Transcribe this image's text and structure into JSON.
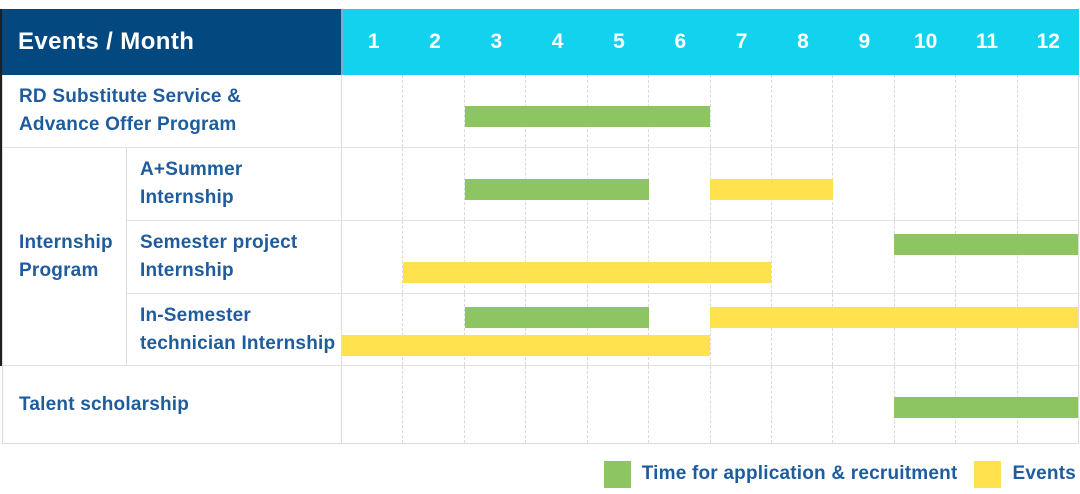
{
  "chart_data": {
    "type": "gantt",
    "corner_header": "Events / Month",
    "months": [
      "1",
      "2",
      "3",
      "4",
      "5",
      "6",
      "7",
      "8",
      "9",
      "10",
      "11",
      "12"
    ],
    "x_range": [
      1,
      12
    ],
    "colors": {
      "green": "#8CC561",
      "yellow": "#FFE24D"
    },
    "theme": {
      "header_bg": "#03487E",
      "months_header_bg": "#12D2EE",
      "label_text": "#1E5C9D"
    },
    "group_label_lines": [
      "Internship",
      "Program"
    ],
    "rows": [
      {
        "label_lines": [
          "RD Substitute Service &",
          "Advance Offer Program"
        ],
        "in_group": false,
        "bars": [
          {
            "color": "green",
            "start_month": 3,
            "end_month": 6,
            "lane": "mid"
          }
        ]
      },
      {
        "label_lines": [
          "A+Summer",
          "Internship"
        ],
        "in_group": true,
        "bars": [
          {
            "color": "green",
            "start_month": 3,
            "end_month": 5,
            "lane": "mid"
          },
          {
            "color": "yellow",
            "start_month": 7,
            "end_month": 8,
            "lane": "mid"
          }
        ]
      },
      {
        "label_lines": [
          "Semester project",
          "Internship"
        ],
        "in_group": true,
        "bars": [
          {
            "color": "green",
            "start_month": 10,
            "end_month": 12,
            "lane": "top"
          },
          {
            "color": "yellow",
            "start_month": 2,
            "end_month": 7,
            "lane": "bottom"
          }
        ]
      },
      {
        "label_lines": [
          "In-Semester",
          "technician Internship"
        ],
        "in_group": true,
        "bars": [
          {
            "color": "green",
            "start_month": 3,
            "end_month": 5,
            "lane": "top"
          },
          {
            "color": "yellow",
            "start_month": 7,
            "end_month": 12,
            "lane": "top"
          },
          {
            "color": "yellow",
            "start_month": 1,
            "end_month": 6,
            "lane": "bottom"
          }
        ]
      },
      {
        "label_lines": [
          "Talent scholarship"
        ],
        "in_group": false,
        "bars": [
          {
            "color": "green",
            "start_month": 10,
            "end_month": 12,
            "lane": "mid"
          }
        ]
      }
    ],
    "legend": [
      {
        "label": "Time for application & recruitment",
        "color": "green"
      },
      {
        "label": "Events",
        "color": "yellow"
      }
    ]
  }
}
